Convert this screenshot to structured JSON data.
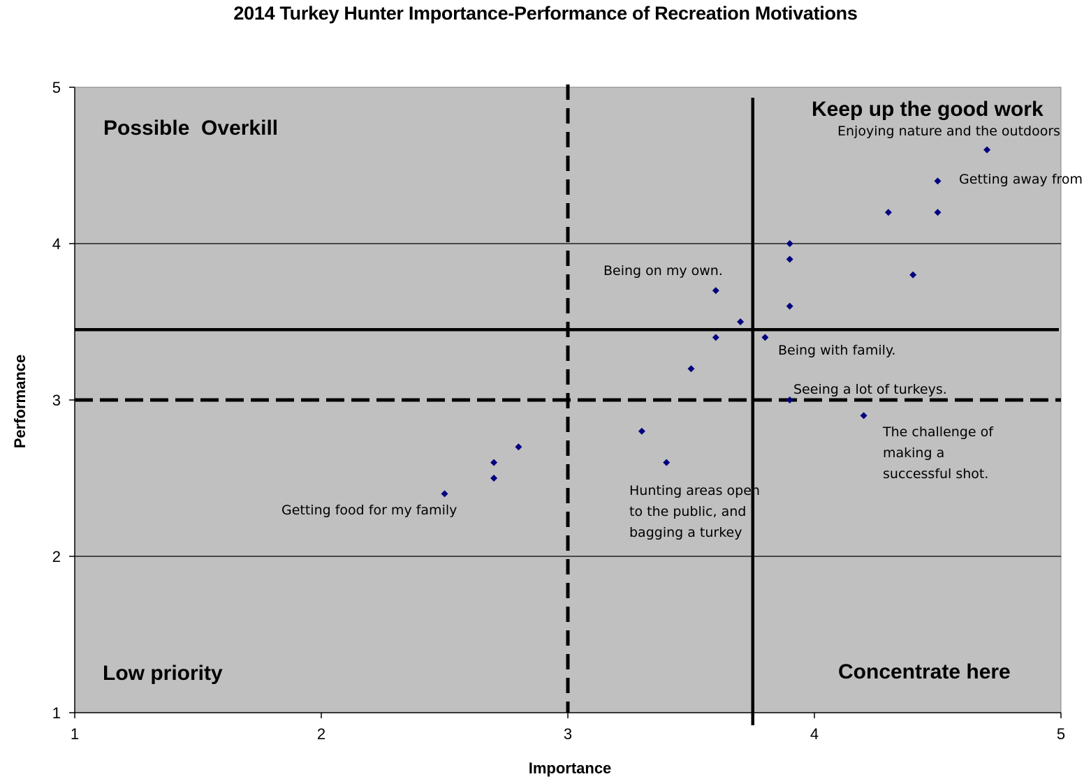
{
  "chart_data": {
    "type": "scatter",
    "title": "2014 Turkey Hunter Importance-Performance of Recreation Motivations",
    "xlabel": "Importance",
    "ylabel": "Performance",
    "xlim": [
      1,
      5
    ],
    "ylim": [
      1,
      5
    ],
    "x_ticks": [
      "1",
      "2",
      "3",
      "4",
      "5"
    ],
    "y_ticks": [
      "1",
      "2",
      "3",
      "4",
      "5"
    ],
    "grid": "horizontal major gridlines",
    "plot_background": "#c0c0c0",
    "marker_color": "#000080",
    "marker_shape": "diamond",
    "points": [
      {
        "x": 4.7,
        "y": 4.6
      },
      {
        "x": 4.5,
        "y": 4.4
      },
      {
        "x": 4.3,
        "y": 4.2
      },
      {
        "x": 4.5,
        "y": 4.2
      },
      {
        "x": 3.9,
        "y": 4.0
      },
      {
        "x": 3.9,
        "y": 3.9
      },
      {
        "x": 4.4,
        "y": 3.8
      },
      {
        "x": 3.6,
        "y": 3.7
      },
      {
        "x": 3.9,
        "y": 3.6
      },
      {
        "x": 3.7,
        "y": 3.5
      },
      {
        "x": 3.6,
        "y": 3.4
      },
      {
        "x": 3.8,
        "y": 3.4
      },
      {
        "x": 3.5,
        "y": 3.2
      },
      {
        "x": 3.9,
        "y": 3.0
      },
      {
        "x": 4.2,
        "y": 2.9
      },
      {
        "x": 3.3,
        "y": 2.8
      },
      {
        "x": 2.8,
        "y": 2.7
      },
      {
        "x": 2.7,
        "y": 2.6
      },
      {
        "x": 3.4,
        "y": 2.6
      },
      {
        "x": 2.7,
        "y": 2.5
      },
      {
        "x": 2.5,
        "y": 2.4
      }
    ],
    "reference_lines": {
      "solid_vertical_x": 3.75,
      "solid_horizontal_y": 3.45,
      "dashed_vertical_x": 3.0,
      "dashed_horizontal_y": 3.0
    },
    "quadrant_labels": {
      "top_left": "Possible  Overkill",
      "top_right": "Keep up the good work",
      "bottom_left": "Low priority",
      "bottom_right": "Concentrate here"
    },
    "annotations": [
      {
        "lines": [
          "Enjoying nature and the outdoors"
        ]
      },
      {
        "lines": [
          "Getting away from"
        ]
      },
      {
        "lines": [
          "Being on my own."
        ]
      },
      {
        "lines": [
          "Being with family."
        ]
      },
      {
        "lines": [
          "Seeing a lot of turkeys."
        ]
      },
      {
        "lines": [
          "The challenge of",
          "making a",
          "successful shot."
        ]
      },
      {
        "lines": [
          "Hunting areas open",
          "to the public, and",
          "bagging a turkey"
        ]
      },
      {
        "lines": [
          "Getting food for my family"
        ]
      }
    ]
  }
}
